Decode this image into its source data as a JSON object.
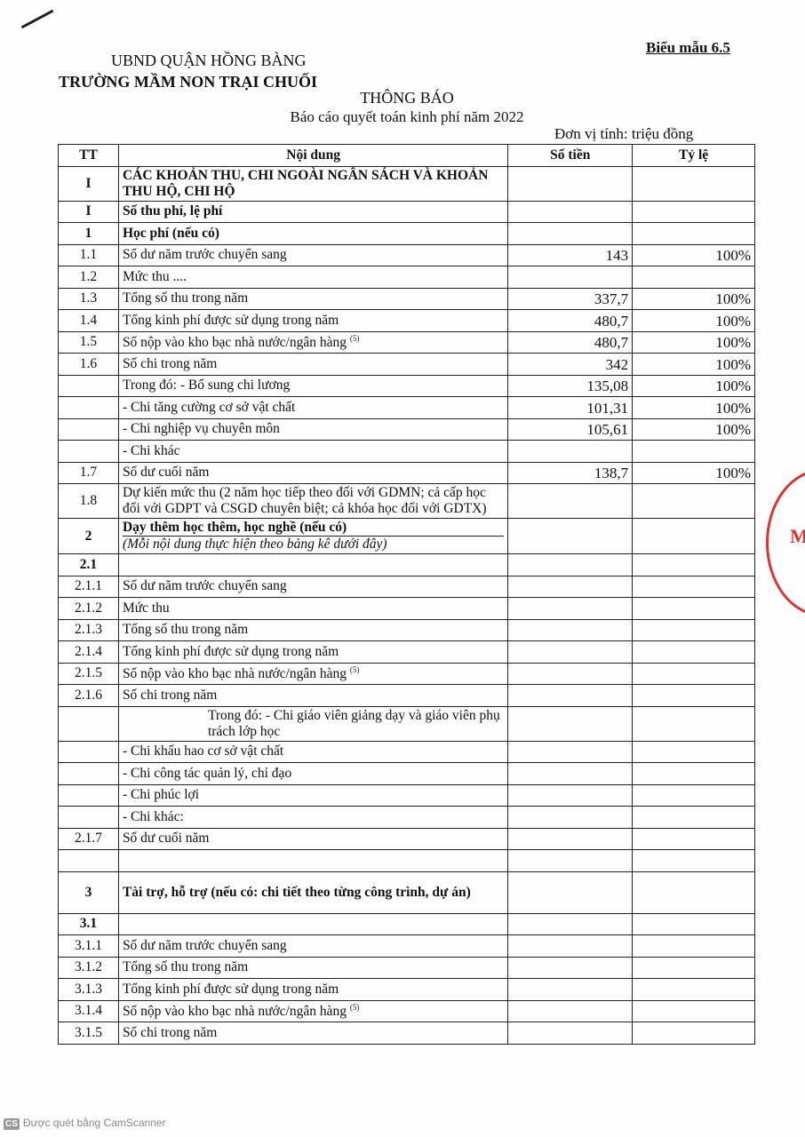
{
  "header": {
    "form_label": "Biểu mẫu 6.5",
    "org_parent": "UBND QUẬN HỒNG BÀNG",
    "org_name": "TRƯỜNG MẦM NON TRẠI CHUỐI",
    "title": "THÔNG BÁO",
    "subtitle": "Báo cáo quyết toán kinh phí năm 2022",
    "unit": "Đơn vị tính: triệu đồng"
  },
  "table": {
    "columns": [
      "TT",
      "Nội dung",
      "Số tiền",
      "Tỷ lệ"
    ],
    "rows": [
      {
        "tt": "I",
        "content": "CÁC KHOẢN THU, CHI NGOÀI NGÂN SÁCH VÀ KHOẢN THU HỘ, CHI HỘ",
        "amount": "",
        "ratio": "",
        "style": "b"
      },
      {
        "tt": "I",
        "content": "Số thu phí, lệ phí",
        "amount": "",
        "ratio": "",
        "style": "b"
      },
      {
        "tt": "1",
        "content": "Học phí (nếu có)",
        "amount": "",
        "ratio": "",
        "style": "b"
      },
      {
        "tt": "1.1",
        "content": "Số dư năm trước chuyển sang",
        "amount": "143",
        "ratio": "100%"
      },
      {
        "tt": "1.2",
        "content": "Mức thu ....",
        "amount": "",
        "ratio": ""
      },
      {
        "tt": "1.3",
        "content": "Tổng số thu trong năm",
        "amount": "337,7",
        "ratio": "100%"
      },
      {
        "tt": "1.4",
        "content": "Tổng kinh phí được sử dụng trong năm",
        "amount": "480,7",
        "ratio": "100%"
      },
      {
        "tt": "1.5",
        "content": "Số nộp vào kho bạc nhà nước/ngân hàng",
        "sup": "(5)",
        "amount": "480,7",
        "ratio": "100%"
      },
      {
        "tt": "1.6",
        "content": "Số chi trong năm",
        "amount": "342",
        "ratio": "100%"
      },
      {
        "tt": "",
        "content": "Trong đó: - Bổ sung chi lương",
        "amount": "135,08",
        "ratio": "100%"
      },
      {
        "tt": "",
        "content": "- Chi tăng cường cơ sở vật chất",
        "amount": "101,31",
        "ratio": "100%"
      },
      {
        "tt": "",
        "content": "- Chi nghiệp vụ chuyên môn",
        "amount": "105,61",
        "ratio": "100%"
      },
      {
        "tt": "",
        "content": "- Chi khác",
        "amount": "",
        "ratio": ""
      },
      {
        "tt": "1.7",
        "content": "Số dư cuối năm",
        "amount": "138,7",
        "ratio": "100%"
      },
      {
        "tt": "1.8",
        "content": "Dự kiến mức thu (2 năm học tiếp theo đối với GDMN; cả cấp học đối với GDPT và CSGD chuyên biệt; cả khóa học đối với GDTX)",
        "amount": "",
        "ratio": ""
      },
      {
        "tt": "2",
        "content": "Dạy thêm học thêm, học nghề (nếu có)",
        "note": "(Mỗi nội dung thực hiện theo bảng kê dưới đây)",
        "amount": "",
        "ratio": "",
        "style": "b"
      },
      {
        "tt": "2.1",
        "content": "",
        "amount": "",
        "ratio": "",
        "style": "b"
      },
      {
        "tt": "2.1.1",
        "content": "Số dư năm trước chuyển sang",
        "amount": "",
        "ratio": ""
      },
      {
        "tt": "2.1.2",
        "content": "Mức thu",
        "amount": "",
        "ratio": ""
      },
      {
        "tt": "2.1.3",
        "content": "Tổng số thu trong năm",
        "amount": "",
        "ratio": ""
      },
      {
        "tt": "2.1.4",
        "content": "Tổng kinh phí được sử dụng trong năm",
        "amount": "",
        "ratio": ""
      },
      {
        "tt": "2.1.5",
        "content": "Số nộp vào kho bạc nhà nước/ngân hàng",
        "sup": "(5)",
        "amount": "",
        "ratio": ""
      },
      {
        "tt": "2.1.6",
        "content": "Số chi trong năm",
        "amount": "",
        "ratio": ""
      },
      {
        "tt": "",
        "content": "Trong đó: - Chi giáo viên giảng dạy và giáo viên phụ trách lớp học",
        "amount": "",
        "ratio": "",
        "style": "center"
      },
      {
        "tt": "",
        "content": "- Chi khấu hao cơ sở vật chất",
        "amount": "",
        "ratio": ""
      },
      {
        "tt": "",
        "content": "- Chi công tác quản lý, chỉ đạo",
        "amount": "",
        "ratio": ""
      },
      {
        "tt": "",
        "content": "- Chi phúc lợi",
        "amount": "",
        "ratio": ""
      },
      {
        "tt": "",
        "content": "- Chi khác:",
        "amount": "",
        "ratio": ""
      },
      {
        "tt": "2.1.7",
        "content": "Số dư cuối năm",
        "amount": "",
        "ratio": ""
      },
      {
        "tt": "",
        "content": "",
        "amount": "",
        "ratio": ""
      },
      {
        "tt": "3",
        "content": "Tài trợ, hỗ trợ (nếu có: chi tiết theo từng công trình, dự án)",
        "amount": "",
        "ratio": "",
        "style": "b tall"
      },
      {
        "tt": "3.1",
        "content": "",
        "amount": "",
        "ratio": "",
        "style": "b"
      },
      {
        "tt": "3.1.1",
        "content": "Số dư năm trước chuyển sang",
        "amount": "",
        "ratio": ""
      },
      {
        "tt": "3.1.2",
        "content": "Tổng số thu trong năm",
        "amount": "",
        "ratio": ""
      },
      {
        "tt": "3.1.3",
        "content": "Tổng kinh phí được sử dụng trong năm",
        "amount": "",
        "ratio": ""
      },
      {
        "tt": "3.1.4",
        "content": "Số nộp vào kho bạc nhà nước/ngân hàng",
        "sup": "(5)",
        "amount": "",
        "ratio": ""
      },
      {
        "tt": "3.1.5",
        "content": "Số chi trong năm",
        "amount": "",
        "ratio": ""
      }
    ]
  },
  "stamp": {
    "text": "M"
  },
  "footer": {
    "badge": "CS",
    "text": "Được quét bằng CamScanner"
  }
}
